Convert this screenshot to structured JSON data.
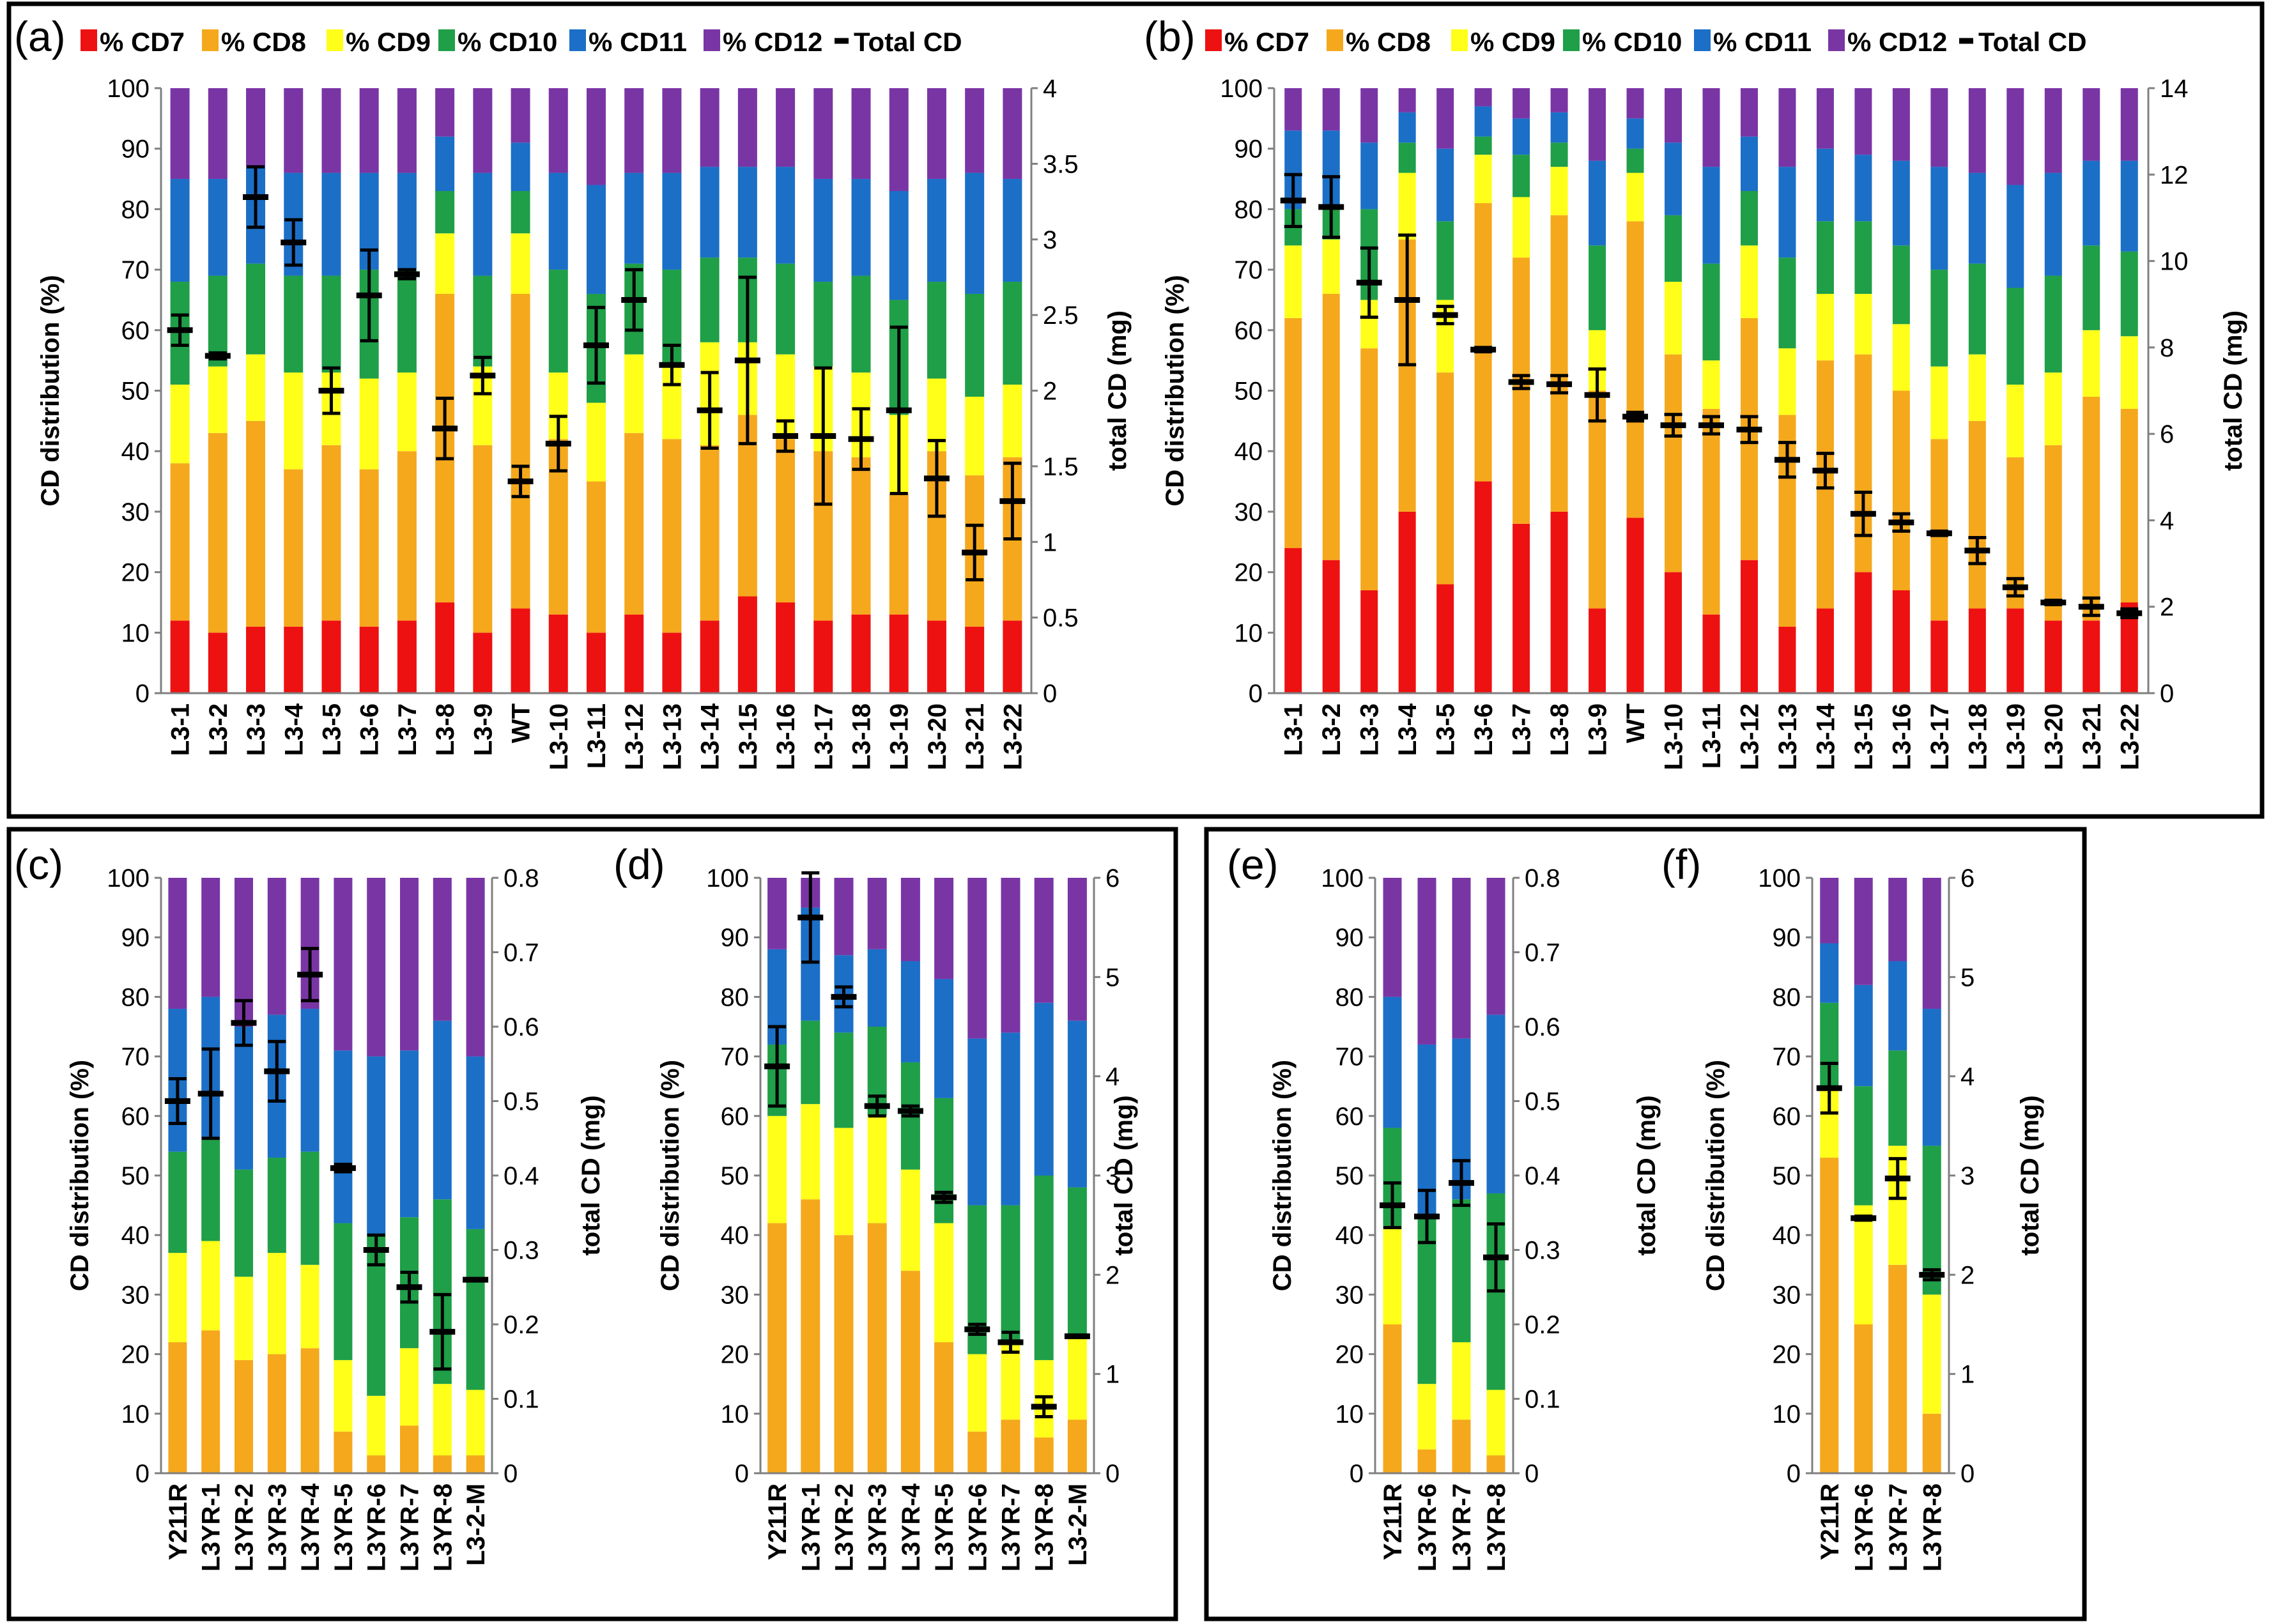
{
  "colors": {
    "CD7": "#ee1111",
    "CD8": "#f5a81c",
    "CD9": "#ffff1a",
    "CD10": "#1f9f47",
    "CD11": "#1b6fc7",
    "CD12": "#7a35a5",
    "total": "#000000"
  },
  "chart_data": [
    {
      "panel": "(a)",
      "type": "bar",
      "stacked": true,
      "ylabel": "CD distribution (%)",
      "y2label": "total CD (mg)",
      "ylim": [
        0,
        100
      ],
      "y2lim": [
        0,
        4
      ],
      "yticks": [
        0,
        10,
        20,
        30,
        40,
        50,
        60,
        70,
        80,
        90,
        100
      ],
      "y2ticks": [
        0,
        0.5,
        1,
        1.5,
        2,
        2.5,
        3,
        3.5,
        4
      ],
      "legend": [
        "% CD7",
        "% CD8",
        "% CD9",
        "% CD10",
        "% CD11",
        "% CD12",
        "Total CD"
      ],
      "categories": [
        "L3-1",
        "L3-2",
        "L3-3",
        "L3-4",
        "L3-5",
        "L3-6",
        "L3-7",
        "L3-8",
        "L3-9",
        "WT",
        "L3-10",
        "L3-11",
        "L3-12",
        "L3-13",
        "L3-14",
        "L3-15",
        "L3-16",
        "L3-17",
        "L3-18",
        "L3-19",
        "L3-20",
        "L3-21",
        "L3-22"
      ],
      "series": [
        {
          "name": "% CD7",
          "color_key": "CD7",
          "values": [
            12,
            10,
            11,
            11,
            12,
            11,
            12,
            15,
            10,
            14,
            13,
            10,
            13,
            10,
            12,
            16,
            15,
            12,
            13,
            13,
            12,
            11,
            12
          ]
        },
        {
          "name": "% CD8",
          "color_key": "CD8",
          "values": [
            26,
            33,
            34,
            26,
            29,
            26,
            28,
            51,
            31,
            52,
            29,
            25,
            30,
            32,
            29,
            30,
            27,
            28,
            26,
            20,
            28,
            25,
            27
          ]
        },
        {
          "name": "% CD9",
          "color_key": "CD9",
          "values": [
            13,
            11,
            11,
            16,
            12,
            15,
            13,
            10,
            13,
            10,
            11,
            13,
            13,
            12,
            17,
            12,
            14,
            14,
            14,
            13,
            12,
            13,
            12
          ]
        },
        {
          "name": "% CD10",
          "color_key": "CD10",
          "values": [
            17,
            15,
            15,
            16,
            16,
            18,
            17,
            7,
            15,
            7,
            17,
            18,
            15,
            16,
            14,
            14,
            15,
            14,
            16,
            19,
            16,
            17,
            17
          ]
        },
        {
          "name": "% CD11",
          "color_key": "CD11",
          "values": [
            17,
            16,
            16,
            17,
            17,
            16,
            16,
            9,
            17,
            8,
            16,
            18,
            15,
            16,
            15,
            15,
            16,
            17,
            16,
            18,
            17,
            20,
            17
          ]
        },
        {
          "name": "% CD12",
          "color_key": "CD12",
          "values": [
            15,
            15,
            13,
            14,
            14,
            14,
            14,
            8,
            14,
            9,
            14,
            16,
            14,
            14,
            13,
            13,
            13,
            15,
            15,
            17,
            15,
            14,
            15
          ]
        }
      ],
      "total_cd": [
        2.4,
        2.23,
        3.28,
        2.98,
        2.0,
        2.63,
        2.77,
        1.75,
        2.1,
        1.4,
        1.65,
        2.3,
        2.6,
        2.17,
        1.87,
        2.2,
        1.7,
        1.7,
        1.68,
        1.87,
        1.42,
        0.93,
        1.27
      ],
      "total_cd_err": [
        0.1,
        0.02,
        0.2,
        0.15,
        0.15,
        0.3,
        0.03,
        0.2,
        0.12,
        0.1,
        0.18,
        0.25,
        0.2,
        0.13,
        0.25,
        0.55,
        0.1,
        0.45,
        0.2,
        0.55,
        0.25,
        0.18,
        0.25
      ]
    },
    {
      "panel": "(b)",
      "type": "bar",
      "stacked": true,
      "ylabel": "CD distribution (%)",
      "y2label": "total CD (mg)",
      "ylim": [
        0,
        100
      ],
      "y2lim": [
        0,
        14
      ],
      "yticks": [
        0,
        10,
        20,
        30,
        40,
        50,
        60,
        70,
        80,
        90,
        100
      ],
      "y2ticks": [
        0,
        2,
        4,
        6,
        8,
        10,
        12,
        14
      ],
      "legend": [
        "% CD7",
        "% CD8",
        "% CD9",
        "% CD10",
        "% CD11",
        "% CD12",
        "Total CD"
      ],
      "categories": [
        "L3-1",
        "L3-2",
        "L3-3",
        "L3-4",
        "L3-5",
        "L3-6",
        "L3-7",
        "L3-8",
        "L3-9",
        "WT",
        "L3-10",
        "L3-11",
        "L3-12",
        "L3-13",
        "L3-14",
        "L3-15",
        "L3-16",
        "L3-17",
        "L3-18",
        "L3-19",
        "L3-20",
        "L3-21",
        "L3-22"
      ],
      "series": [
        {
          "name": "% CD7",
          "color_key": "CD7",
          "values": [
            24,
            22,
            17,
            30,
            18,
            35,
            28,
            30,
            14,
            29,
            20,
            13,
            22,
            11,
            14,
            20,
            17,
            12,
            14,
            14,
            12,
            12,
            15
          ]
        },
        {
          "name": "% CD8",
          "color_key": "CD8",
          "values": [
            38,
            44,
            40,
            45,
            35,
            46,
            44,
            49,
            36,
            49,
            36,
            34,
            40,
            35,
            41,
            36,
            33,
            30,
            31,
            25,
            29,
            37,
            32
          ]
        },
        {
          "name": "% CD9",
          "color_key": "CD9",
          "values": [
            12,
            9,
            8,
            11,
            12,
            8,
            10,
            8,
            10,
            8,
            12,
            8,
            12,
            11,
            11,
            10,
            11,
            12,
            11,
            12,
            12,
            11,
            12
          ]
        },
        {
          "name": "% CD10",
          "color_key": "CD10",
          "values": [
            6,
            5,
            15,
            5,
            13,
            3,
            7,
            4,
            14,
            4,
            11,
            16,
            9,
            15,
            12,
            12,
            13,
            16,
            15,
            16,
            16,
            14,
            14
          ]
        },
        {
          "name": "% CD11",
          "color_key": "CD11",
          "values": [
            13,
            13,
            11,
            5,
            12,
            5,
            6,
            5,
            14,
            5,
            12,
            16,
            9,
            15,
            12,
            11,
            14,
            17,
            15,
            17,
            17,
            14,
            15
          ]
        },
        {
          "name": "% CD12",
          "color_key": "CD12",
          "values": [
            7,
            7,
            9,
            4,
            10,
            3,
            5,
            4,
            12,
            5,
            9,
            13,
            8,
            13,
            10,
            11,
            12,
            13,
            14,
            16,
            14,
            12,
            12
          ]
        }
      ],
      "total_cd": [
        11.4,
        11.25,
        9.5,
        9.1,
        8.75,
        7.95,
        7.2,
        7.15,
        6.9,
        6.4,
        6.2,
        6.2,
        6.1,
        5.4,
        5.15,
        4.15,
        3.95,
        3.7,
        3.3,
        2.45,
        2.1,
        2.0,
        1.85
      ],
      "total_cd_err": [
        0.6,
        0.7,
        0.8,
        1.5,
        0.2,
        0.05,
        0.15,
        0.2,
        0.6,
        0.1,
        0.25,
        0.2,
        0.3,
        0.4,
        0.4,
        0.5,
        0.2,
        0.05,
        0.3,
        0.2,
        0.05,
        0.2,
        0.1
      ]
    },
    {
      "panel": "(c)",
      "type": "bar",
      "stacked": true,
      "ylabel": "CD distribution (%)",
      "y2label": "total CD (mg)",
      "ylim": [
        0,
        100
      ],
      "y2lim": [
        0,
        0.8
      ],
      "yticks": [
        0,
        10,
        20,
        30,
        40,
        50,
        60,
        70,
        80,
        90,
        100
      ],
      "y2ticks": [
        0,
        0.1,
        0.2,
        0.3,
        0.4,
        0.5,
        0.6,
        0.7,
        0.8
      ],
      "categories": [
        "Y211R",
        "L3YR-1",
        "L3YR-2",
        "L3YR-3",
        "L3YR-4",
        "L3YR-5",
        "L3YR-6",
        "L3YR-7",
        "L3YR-8",
        "L3-2-M"
      ],
      "series": [
        {
          "name": "% CD8",
          "color_key": "CD8",
          "values": [
            22,
            24,
            19,
            20,
            21,
            7,
            3,
            8,
            3,
            3
          ]
        },
        {
          "name": "% CD9",
          "color_key": "CD9",
          "values": [
            15,
            15,
            14,
            17,
            14,
            12,
            10,
            13,
            12,
            11
          ]
        },
        {
          "name": "% CD10",
          "color_key": "CD10",
          "values": [
            17,
            17,
            18,
            16,
            19,
            23,
            27,
            22,
            31,
            27
          ]
        },
        {
          "name": "% CD11",
          "color_key": "CD11",
          "values": [
            24,
            24,
            24,
            24,
            24,
            29,
            30,
            28,
            30,
            29
          ]
        },
        {
          "name": "% CD12",
          "color_key": "CD12",
          "values": [
            22,
            20,
            25,
            23,
            22,
            29,
            30,
            29,
            24,
            30
          ]
        }
      ],
      "total_cd": [
        0.5,
        0.51,
        0.605,
        0.54,
        0.67,
        0.41,
        0.3,
        0.25,
        0.19,
        0.26
      ],
      "total_cd_err": [
        0.03,
        0.06,
        0.03,
        0.04,
        0.035,
        0.005,
        0.02,
        0.02,
        0.05,
        0.0
      ]
    },
    {
      "panel": "(d)",
      "type": "bar",
      "stacked": true,
      "ylabel": "CD distribution (%)",
      "y2label": "total CD (mg)",
      "ylim": [
        0,
        100
      ],
      "y2lim": [
        0,
        6
      ],
      "yticks": [
        0,
        10,
        20,
        30,
        40,
        50,
        60,
        70,
        80,
        90,
        100
      ],
      "y2ticks": [
        0,
        1,
        2,
        3,
        4,
        5,
        6
      ],
      "categories": [
        "Y211R",
        "L3YR-1",
        "L3YR-2",
        "L3YR-3",
        "L3YR-4",
        "L3YR-5",
        "L3YR-6",
        "L3YR-7",
        "L3YR-8",
        "L3-2-M"
      ],
      "series": [
        {
          "name": "% CD8",
          "color_key": "CD8",
          "values": [
            42,
            46,
            40,
            42,
            34,
            22,
            7,
            9,
            6,
            9
          ]
        },
        {
          "name": "% CD9",
          "color_key": "CD9",
          "values": [
            18,
            16,
            18,
            18,
            17,
            20,
            13,
            13,
            13,
            14
          ]
        },
        {
          "name": "% CD10",
          "color_key": "CD10",
          "values": [
            12,
            14,
            16,
            15,
            18,
            21,
            25,
            23,
            31,
            25
          ]
        },
        {
          "name": "% CD11",
          "color_key": "CD11",
          "values": [
            16,
            19,
            13,
            13,
            17,
            20,
            28,
            29,
            29,
            28
          ]
        },
        {
          "name": "% CD12",
          "color_key": "CD12",
          "values": [
            12,
            5,
            13,
            12,
            14,
            17,
            27,
            26,
            21,
            24
          ]
        }
      ],
      "total_cd": [
        4.1,
        5.6,
        4.8,
        3.7,
        3.65,
        2.78,
        1.45,
        1.32,
        0.67,
        1.38
      ],
      "total_cd_err": [
        0.4,
        0.45,
        0.1,
        0.1,
        0.05,
        0.05,
        0.05,
        0.1,
        0.1,
        0.0
      ]
    },
    {
      "panel": "(e)",
      "type": "bar",
      "stacked": true,
      "ylabel": "CD distribution (%)",
      "y2label": "total CD (mg)",
      "ylim": [
        0,
        100
      ],
      "y2lim": [
        0,
        0.8
      ],
      "yticks": [
        0,
        10,
        20,
        30,
        40,
        50,
        60,
        70,
        80,
        90,
        100
      ],
      "y2ticks": [
        0,
        0.1,
        0.2,
        0.3,
        0.4,
        0.5,
        0.6,
        0.7,
        0.8
      ],
      "categories": [
        "Y211R",
        "L3YR-6",
        "L3YR-7",
        "L3YR-8"
      ],
      "series": [
        {
          "name": "% CD8",
          "color_key": "CD8",
          "values": [
            25,
            4,
            9,
            3
          ]
        },
        {
          "name": "% CD9",
          "color_key": "CD9",
          "values": [
            16,
            11,
            13,
            11
          ]
        },
        {
          "name": "% CD10",
          "color_key": "CD10",
          "values": [
            17,
            28,
            24,
            33
          ]
        },
        {
          "name": "% CD11",
          "color_key": "CD11",
          "values": [
            22,
            29,
            27,
            30
          ]
        },
        {
          "name": "% CD12",
          "color_key": "CD12",
          "values": [
            20,
            28,
            27,
            23
          ]
        }
      ],
      "total_cd": [
        0.36,
        0.345,
        0.39,
        0.29
      ],
      "total_cd_err": [
        0.03,
        0.035,
        0.03,
        0.045
      ]
    },
    {
      "panel": "(f)",
      "type": "bar",
      "stacked": true,
      "ylabel": "CD distribution (%)",
      "y2label": "total CD (mg)",
      "ylim": [
        0,
        100
      ],
      "y2lim": [
        0,
        6
      ],
      "yticks": [
        0,
        10,
        20,
        30,
        40,
        50,
        60,
        70,
        80,
        90,
        100
      ],
      "y2ticks": [
        0,
        1,
        2,
        3,
        4,
        5,
        6
      ],
      "categories": [
        "Y211R",
        "L3YR-6",
        "L3YR-7",
        "L3YR-8"
      ],
      "series": [
        {
          "name": "% CD8",
          "color_key": "CD8",
          "values": [
            53,
            25,
            35,
            10
          ]
        },
        {
          "name": "% CD9",
          "color_key": "CD9",
          "values": [
            12,
            20,
            20,
            20
          ]
        },
        {
          "name": "% CD10",
          "color_key": "CD10",
          "values": [
            14,
            20,
            16,
            25
          ]
        },
        {
          "name": "% CD11",
          "color_key": "CD11",
          "values": [
            10,
            17,
            15,
            23
          ]
        },
        {
          "name": "% CD12",
          "color_key": "CD12",
          "values": [
            11,
            18,
            14,
            22
          ]
        }
      ],
      "total_cd": [
        3.88,
        2.57,
        2.97,
        2.0
      ],
      "total_cd_err": [
        0.25,
        0.02,
        0.2,
        0.05
      ]
    }
  ]
}
